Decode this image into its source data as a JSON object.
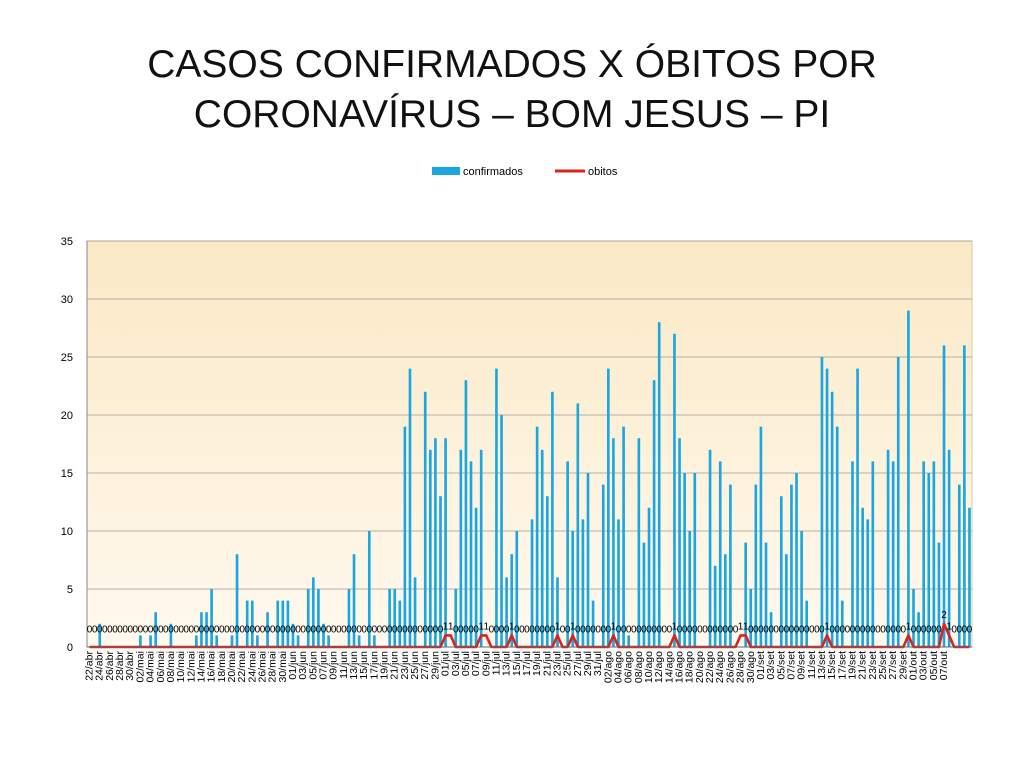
{
  "slide": {
    "title_line1": "CASOS CONFIRMADOS X ÓBITOS  POR",
    "title_line2": "CORONAVÍRUS – BOM JESUS – PI"
  },
  "colors": {
    "bars": "#1aa7e0",
    "line": "#e0201a",
    "plot_bg": "#fdf2da"
  },
  "chart_data": {
    "type": "bar",
    "title": "",
    "xlabel": "",
    "ylabel": "",
    "ylim": [
      0,
      35
    ],
    "yticks": [
      0,
      5,
      10,
      15,
      20,
      25,
      30,
      35
    ],
    "legend_position": "top",
    "grid": true,
    "x_tick_labels": [
      "22/abr",
      "24/abr",
      "26/abr",
      "28/abr",
      "30/abr",
      "02/mai",
      "04/mai",
      "06/mai",
      "08/mai",
      "10/mai",
      "12/mai",
      "14/mai",
      "16/mai",
      "18/mai",
      "20/mai",
      "22/mai",
      "24/mai",
      "26/mai",
      "28/mai",
      "30/mai",
      "01/jun",
      "03/jun",
      "05/jun",
      "07/jun",
      "09/jun",
      "11/jun",
      "13/jun",
      "15/jun",
      "17/jun",
      "19/jun",
      "21/jun",
      "23/jun",
      "25/jun",
      "27/jun",
      "29/jun",
      "01/jul",
      "03/jul",
      "05/jul",
      "07/jul",
      "09/jul",
      "11/jul",
      "13/jul",
      "15/jul",
      "17/jul",
      "19/jul",
      "21/jul",
      "23/jul",
      "25/jul",
      "27/jul",
      "29/jul",
      "31/jul",
      "02/ago",
      "04/ago",
      "06/ago",
      "08/ago",
      "10/ago",
      "12/ago",
      "14/ago",
      "16/ago",
      "18/ago",
      "20/ago",
      "22/ago",
      "24/ago",
      "26/ago",
      "28/ago",
      "30/ago",
      "01/set",
      "03/set",
      "05/set",
      "07/set",
      "09/set",
      "11/set",
      "13/set",
      "15/set",
      "17/set",
      "19/set",
      "21/set",
      "23/set",
      "25/set",
      "27/set",
      "29/set",
      "01/out",
      "03/out",
      "05/out",
      "07/out"
    ],
    "series": [
      {
        "name": "confirmados",
        "type": "bar",
        "values": [
          0,
          0,
          2,
          0,
          0,
          0,
          0,
          0,
          0,
          0,
          1,
          0,
          1,
          3,
          0,
          0,
          2,
          0,
          0,
          0,
          0,
          1,
          3,
          3,
          5,
          1,
          0,
          0,
          1,
          8,
          0,
          4,
          4,
          1,
          0,
          3,
          0,
          4,
          4,
          4,
          2,
          1,
          0,
          5,
          6,
          5,
          2,
          1,
          0,
          0,
          0,
          5,
          8,
          1,
          0,
          10,
          1,
          0,
          0,
          5,
          5,
          4,
          19,
          24,
          6,
          0,
          22,
          17,
          18,
          13,
          18,
          0,
          5,
          17,
          23,
          16,
          12,
          17,
          0,
          0,
          24,
          20,
          6,
          8,
          10,
          0,
          0,
          11,
          19,
          17,
          13,
          22,
          6,
          0,
          16,
          10,
          21,
          11,
          15,
          4,
          0,
          14,
          24,
          18,
          11,
          19,
          1,
          0,
          18,
          9,
          12,
          23,
          28,
          0,
          0,
          27,
          18,
          15,
          10,
          15,
          0,
          0,
          17,
          7,
          16,
          8,
          14,
          0,
          0,
          9,
          5,
          14,
          19,
          9,
          3,
          0,
          13,
          8,
          14,
          15,
          10,
          4,
          0,
          0,
          25,
          24,
          22,
          19,
          4,
          0,
          16,
          24,
          12,
          11,
          16,
          0,
          0,
          17,
          16,
          25,
          0,
          29,
          5,
          3,
          16,
          15,
          16,
          9,
          26,
          17,
          0,
          14,
          26,
          12
        ]
      },
      {
        "name": "obitos",
        "type": "line",
        "values": [
          0,
          0,
          0,
          0,
          0,
          0,
          0,
          0,
          0,
          0,
          0,
          0,
          0,
          0,
          0,
          0,
          0,
          0,
          0,
          0,
          0,
          0,
          0,
          0,
          0,
          0,
          0,
          0,
          0,
          0,
          0,
          0,
          0,
          0,
          0,
          0,
          0,
          0,
          0,
          0,
          0,
          0,
          0,
          0,
          0,
          0,
          0,
          0,
          0,
          0,
          0,
          0,
          0,
          0,
          0,
          0,
          0,
          0,
          0,
          0,
          0,
          0,
          0,
          0,
          0,
          0,
          0,
          0,
          0,
          0,
          1,
          1,
          0,
          0,
          0,
          0,
          0,
          1,
          1,
          0,
          0,
          0,
          0,
          1,
          0,
          0,
          0,
          0,
          0,
          0,
          0,
          0,
          1,
          0,
          0,
          1,
          0,
          0,
          0,
          0,
          0,
          0,
          0,
          1,
          0,
          0,
          0,
          0,
          0,
          0,
          0,
          0,
          0,
          0,
          0,
          1,
          0,
          0,
          0,
          0,
          0,
          0,
          0,
          0,
          0,
          0,
          0,
          0,
          1,
          1,
          0,
          0,
          0,
          0,
          0,
          0,
          0,
          0,
          0,
          0,
          0,
          0,
          0,
          0,
          0,
          1,
          0,
          0,
          0,
          0,
          0,
          0,
          0,
          0,
          0,
          0,
          0,
          0,
          0,
          0,
          0,
          1,
          0,
          0,
          0,
          0,
          0,
          0,
          2,
          1,
          0,
          0,
          0,
          0
        ],
        "data_labels": [
          "0",
          "0",
          "0",
          "0",
          "0",
          "0",
          "0",
          "0",
          "0",
          "0",
          "0",
          "0",
          "0",
          "0",
          "0",
          "0",
          "0",
          "0",
          "0",
          "0",
          "0",
          "0",
          "0",
          "0",
          "0",
          "0",
          "0",
          "0",
          "0",
          "0",
          "0",
          "0",
          "0",
          "0",
          "0",
          "0",
          "0",
          "0",
          "0",
          "0",
          "0",
          "0",
          "0",
          "0",
          "0",
          "0",
          "0",
          "0",
          "0",
          "0",
          "0",
          "0",
          "0",
          "0",
          "0",
          "0",
          "0",
          "0",
          "0",
          "0",
          "0",
          "0",
          "0",
          "0",
          "0",
          "0",
          "0",
          "0",
          "0",
          "0",
          "1",
          "1",
          "0",
          "0",
          "0",
          "0",
          "0",
          "1",
          "1",
          "0",
          "0",
          "0",
          "0",
          "1",
          "0",
          "0",
          "0",
          "0",
          "0",
          "0",
          "0",
          "0",
          "1",
          "0",
          "0",
          "1",
          "0",
          "0",
          "0",
          "0",
          "0",
          "0",
          "0",
          "1",
          "0",
          "0",
          "0",
          "0",
          "0",
          "0",
          "0",
          "0",
          "0",
          "0",
          "0",
          "1",
          "0",
          "0",
          "0",
          "0",
          "0",
          "0",
          "0",
          "0",
          "0",
          "0",
          "0",
          "0",
          "1",
          "1",
          "0",
          "0",
          "0",
          "0",
          "0",
          "0",
          "0",
          "0",
          "0",
          "0",
          "0",
          "0",
          "0",
          "0",
          "0",
          "1",
          "0",
          "0",
          "0",
          "0",
          "0",
          "0",
          "0",
          "0",
          "0",
          "0",
          "0",
          "0",
          "0",
          "0",
          "0",
          "1",
          "0",
          "0",
          "0",
          "0",
          "0",
          "0",
          "2",
          "1",
          "0",
          "0",
          "0",
          "0"
        ]
      }
    ]
  }
}
